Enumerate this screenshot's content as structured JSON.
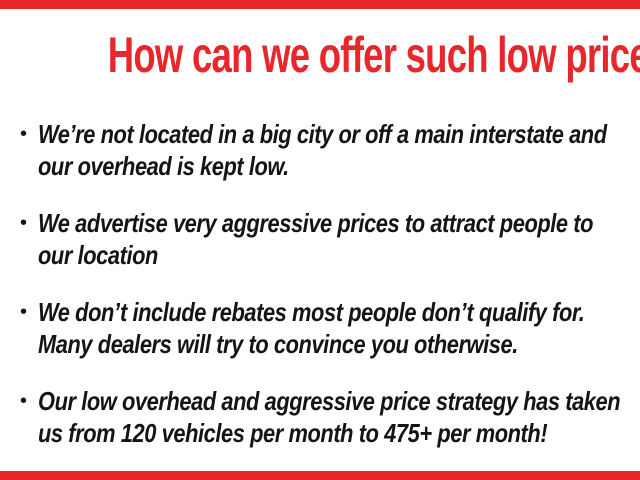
{
  "colors": {
    "accent_red": "#e8262b",
    "text": "#141414",
    "background": "#ffffff"
  },
  "title": "How can we offer such low prices?",
  "bullet_glyph": "•",
  "bullets": [
    {
      "lines": [
        "We’re not located in a big city or off a main interstate and",
        "our overhead is kept low."
      ]
    },
    {
      "lines": [
        "We advertise very aggressive prices to attract people to",
        "our location"
      ]
    },
    {
      "lines": [
        "We don’t include rebates most people don’t qualify for.",
        "Many dealers will try to convince you otherwise."
      ]
    },
    {
      "lines": [
        "Our low overhead and aggressive price strategy has taken",
        "us from 120 vehicles per month to 475+ per month!"
      ]
    }
  ]
}
